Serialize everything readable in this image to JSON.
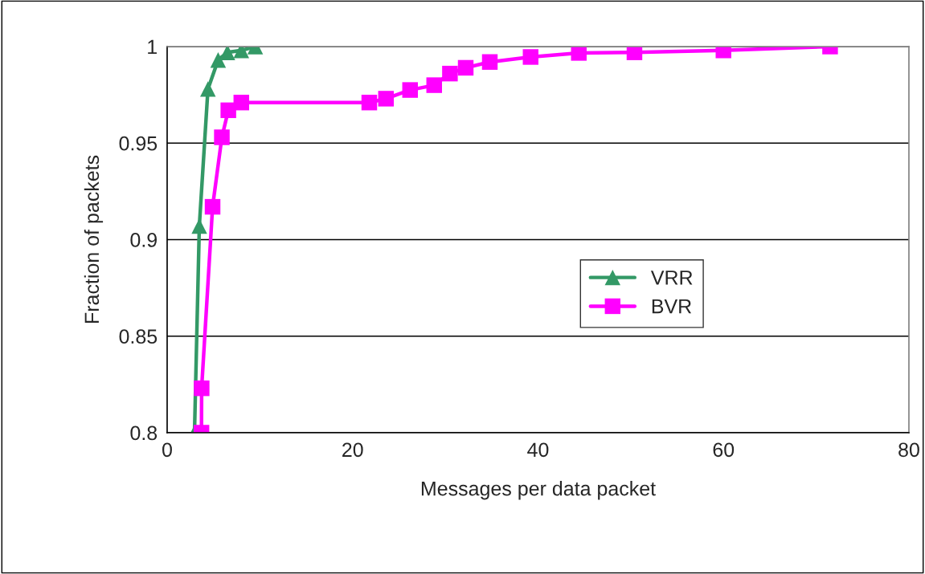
{
  "chart_data": {
    "type": "line",
    "xlabel": "Messages per data packet",
    "ylabel": "Fraction of packets",
    "xlim": [
      0,
      80
    ],
    "xticks": [
      0,
      20,
      40,
      60,
      80
    ],
    "ylim": [
      0.8,
      1
    ],
    "yticks": [
      0.8,
      0.85,
      0.9,
      0.95,
      1
    ],
    "grid": "y",
    "legend": "center",
    "line_style": "solid",
    "series": [
      {
        "name": "VRR",
        "color": "#339966",
        "marker": "triangle",
        "x": [
          2.95,
          3.47,
          4.4,
          5.5,
          6.5,
          8,
          9.5
        ],
        "values": [
          0.8,
          0.907,
          0.978,
          0.993,
          0.997,
          0.998,
          1.0
        ]
      },
      {
        "name": "BVR",
        "color": "#ff00ff",
        "marker": "square",
        "x": [
          3.7,
          3.72,
          4.9,
          5.9,
          6.6,
          8,
          21.8,
          23.6,
          26.2,
          28.8,
          30.5,
          32.2,
          34.8,
          39.2,
          44.4,
          50.4,
          60,
          71.5
        ],
        "values": [
          0.8,
          0.823,
          0.917,
          0.953,
          0.967,
          0.971,
          0.971,
          0.973,
          0.9775,
          0.98,
          0.986,
          0.989,
          0.992,
          0.9946,
          0.9967,
          0.997,
          0.998,
          1.0
        ]
      }
    ]
  }
}
